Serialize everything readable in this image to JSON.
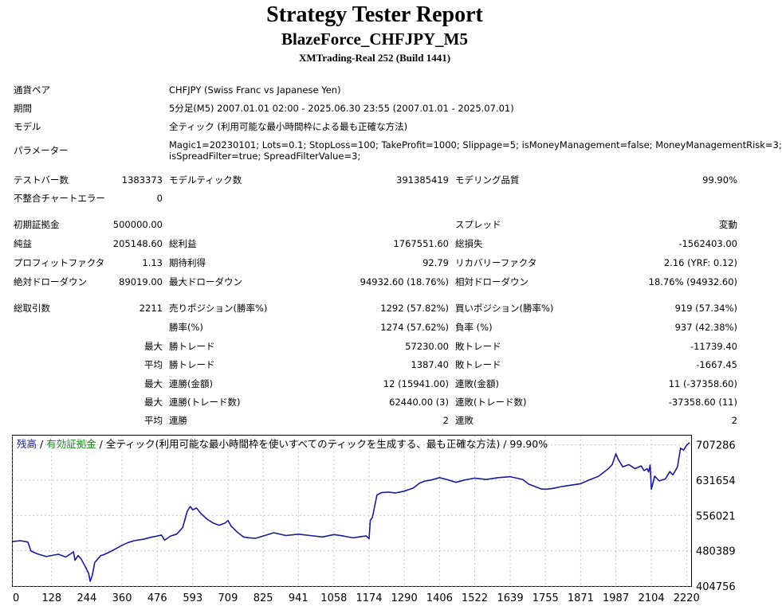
{
  "report": {
    "title": "Strategy Tester Report",
    "subtitle": "BlazeForce_CHFJPY_M5",
    "build": "XMTrading-Real 252 (Build 1441)"
  },
  "info": {
    "symbol_label": "通貨ペア",
    "symbol_value": "CHFJPY (Swiss Franc vs Japanese Yen)",
    "period_label": "期間",
    "period_value": "5分足(M5) 2007.01.01 02:00 - 2025.06.30 23:55 (2007.01.01 - 2025.07.01)",
    "model_label": "モデル",
    "model_value": "全ティック (利用可能な最小時間枠による最も正確な方法)",
    "params_label": "パラメーター",
    "params_line1": "Magic1=20230101; Lots=0.1; StopLoss=100; TakeProfit=1000; Slippage=5; isMoneyManagement=false; MoneyManagementRisk=3;",
    "params_line2": "isSpreadFilter=true; SpreadFilterValue=3;"
  },
  "stats": {
    "bars_label": "テストバー数",
    "bars_value": "1383373",
    "ticks_label": "モデルティック数",
    "ticks_value": "391385419",
    "quality_label": "モデリング品質",
    "quality_value": "99.90%",
    "mismatch_label": "不整合チャートエラー",
    "mismatch_value": "0",
    "deposit_label": "初期証拠金",
    "deposit_value": "500000.00",
    "spread_label": "スプレッド",
    "spread_value": "変動",
    "net_label": "純益",
    "net_value": "205148.60",
    "gross_profit_label": "総利益",
    "gross_profit_value": "1767551.60",
    "gross_loss_label": "総損失",
    "gross_loss_value": "-1562403.00",
    "pf_label": "プロフィットファクタ",
    "pf_value": "1.13",
    "expected_label": "期待利得",
    "expected_value": "92.79",
    "recovery_label": "リカバリーファクタ",
    "recovery_value": "2.16 (YRF: 0.12)",
    "abs_dd_label": "絶対ドローダウン",
    "abs_dd_value": "89019.00",
    "max_dd_label": "最大ドローダウン",
    "max_dd_value": "94932.60 (18.76%)",
    "rel_dd_label": "相対ドローダウン",
    "rel_dd_value": "18.76% (94932.60)",
    "total_trades_label": "総取引数",
    "total_trades_value": "2211",
    "short_label": "売りポジション(勝率%)",
    "short_value": "1292 (57.82%)",
    "long_label": "買いポジション(勝率%)",
    "long_value": "919 (57.34%)",
    "win_rate_label": "勝率(%)",
    "win_rate_value": "1274 (57.62%)",
    "loss_rate_label": "負率 (%)",
    "loss_rate_value": "937 (42.38%)",
    "max_label": "最大",
    "avg_label": "平均",
    "largest_win_label": "勝トレード",
    "largest_win_value": "57230.00",
    "largest_loss_label": "敗トレード",
    "largest_loss_value": "-11739.40",
    "avg_win_label": "勝トレード",
    "avg_win_value": "1387.40",
    "avg_loss_label": "敗トレード",
    "avg_loss_value": "-1667.45",
    "max_consec_wins_label": "連勝(金額)",
    "max_consec_wins_value": "12 (15941.00)",
    "max_consec_losses_label": "連敗(金額)",
    "max_consec_losses_value": "11 (-37358.60)",
    "max_consec_profit_label": "連勝(トレード数)",
    "max_consec_profit_value": "62440.00 (3)",
    "max_consec_loss_label": "連敗(トレード数)",
    "max_consec_loss_value": "-37358.60 (11)",
    "avg_consec_wins_label": "連勝",
    "avg_consec_wins_value": "2",
    "avg_consec_losses_label": "連敗",
    "avg_consec_losses_value": "2"
  },
  "chart_legend": {
    "balance": "残高",
    "sep1": " / ",
    "equity": "有効証拠金",
    "sep2": " / ",
    "rest": "全ティック(利用可能な最小時間枠を使いすべてのティックを生成する、最も正確な方法) / 99.90%"
  },
  "colors": {
    "balance_line": "#1a1a9a",
    "equity_text": "#1a8a1a",
    "grid": "#c8c8c8"
  },
  "chart_data": {
    "type": "line",
    "title": "",
    "xlabel": "",
    "ylabel": "",
    "x_ticks": [
      0,
      128,
      244,
      360,
      476,
      593,
      709,
      825,
      941,
      1058,
      1174,
      1290,
      1406,
      1522,
      1639,
      1755,
      1871,
      1987,
      2104,
      2220
    ],
    "y_ticks": [
      404756,
      480389,
      556021,
      631654,
      707286
    ],
    "xlim": [
      0,
      2235
    ],
    "ylim": [
      404756,
      727000
    ],
    "grid": true,
    "series": [
      {
        "name": "残高",
        "x": [
          0,
          25,
          50,
          60,
          80,
          110,
          150,
          175,
          200,
          205,
          215,
          225,
          232,
          240,
          250,
          255,
          262,
          270,
          290,
          300,
          320,
          340,
          360,
          380,
          400,
          430,
          460,
          476,
          490,
          500,
          520,
          540,
          560,
          575,
          585,
          593,
          605,
          620,
          640,
          660,
          680,
          700,
          709,
          720,
          740,
          760,
          780,
          800,
          825,
          860,
          900,
          941,
          980,
          1020,
          1058,
          1090,
          1120,
          1150,
          1165,
          1174,
          1178,
          1185,
          1200,
          1215,
          1240,
          1260,
          1290,
          1320,
          1340,
          1360,
          1380,
          1406,
          1430,
          1460,
          1490,
          1522,
          1560,
          1600,
          1639,
          1680,
          1700,
          1720,
          1740,
          1755,
          1780,
          1810,
          1840,
          1871,
          1900,
          1930,
          1950,
          1965,
          1975,
          1987,
          1995,
          2010,
          2030,
          2050,
          2070,
          2080,
          2090,
          2095,
          2100,
          2104,
          2115,
          2130,
          2150,
          2165,
          2175,
          2190,
          2200,
          2210,
          2220,
          2230
        ],
        "values": [
          500000,
          502000,
          499000,
          480000,
          474000,
          468000,
          473000,
          467000,
          478000,
          460000,
          470000,
          463000,
          455000,
          445000,
          432000,
          415000,
          428000,
          455000,
          470000,
          472000,
          478000,
          485000,
          492000,
          498000,
          502000,
          505000,
          510000,
          512000,
          514000,
          503000,
          512000,
          516000,
          530000,
          565000,
          575000,
          568000,
          572000,
          560000,
          548000,
          540000,
          535000,
          540000,
          545000,
          533000,
          520000,
          510000,
          508000,
          507000,
          512000,
          519000,
          513000,
          516000,
          513000,
          510000,
          515000,
          512000,
          508000,
          511000,
          512000,
          506000,
          545000,
          552000,
          600000,
          605000,
          606000,
          604000,
          608000,
          615000,
          625000,
          630000,
          632000,
          637000,
          633000,
          627000,
          632000,
          636000,
          633000,
          637000,
          639000,
          633000,
          623000,
          618000,
          613000,
          612000,
          614000,
          618000,
          621000,
          624000,
          632000,
          640000,
          650000,
          658000,
          665000,
          688000,
          676000,
          660000,
          665000,
          656000,
          662000,
          652000,
          656000,
          649000,
          664000,
          612000,
          640000,
          630000,
          634000,
          650000,
          643000,
          660000,
          700000,
          696000,
          706000,
          712000
        ]
      }
    ]
  }
}
